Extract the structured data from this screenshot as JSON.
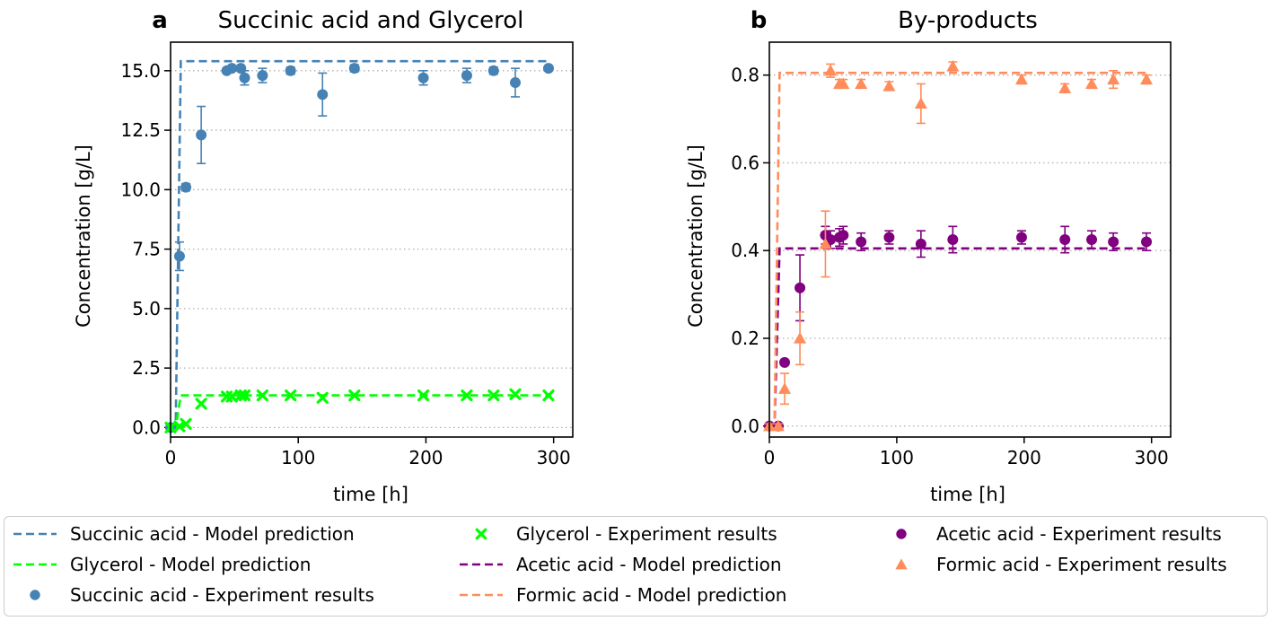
{
  "chart_data": [
    {
      "panel_letter": "a",
      "title": "Succinic acid and Glycerol",
      "type": "line",
      "xlabel": "time [h]",
      "ylabel": "Concentration [g/L]",
      "xlim": [
        0,
        315
      ],
      "ylim": [
        -0.4,
        16.2
      ],
      "xticks": [
        0,
        100,
        200,
        300
      ],
      "xtick_labels": [
        "0",
        "100",
        "200",
        "300"
      ],
      "yticks": [
        0,
        2.5,
        5,
        7.5,
        10,
        12.5,
        15
      ],
      "ytick_labels": [
        "0.0",
        "2.5",
        "5.0",
        "7.5",
        "10.0",
        "12.5",
        "15.0"
      ],
      "grid": "horizontal dotted",
      "model_series": [
        {
          "name": "Succinic acid - Model prediction",
          "x": [
            0,
            4,
            8,
            296
          ],
          "y": [
            0,
            0,
            15.4,
            15.4
          ],
          "color": "#4682b4"
        },
        {
          "name": "Glycerol - Model prediction",
          "x": [
            0,
            4,
            8,
            296
          ],
          "y": [
            0,
            0,
            1.35,
            1.35
          ],
          "color": "#00ff00"
        }
      ],
      "experiment_series": [
        {
          "name": "Succinic acid - Experiment results",
          "marker": "circle",
          "color": "#4682b4",
          "x": [
            0,
            7,
            12,
            24,
            44,
            48,
            55,
            58,
            72,
            94,
            119,
            144,
            198,
            232,
            253,
            270,
            296
          ],
          "y": [
            0,
            7.2,
            10.1,
            12.3,
            15.0,
            15.1,
            15.1,
            14.7,
            14.8,
            15.0,
            14.0,
            15.1,
            14.7,
            14.8,
            15.0,
            14.5,
            15.1
          ],
          "err": [
            0.05,
            0.6,
            0.15,
            1.2,
            0.1,
            0.1,
            0.1,
            0.3,
            0.3,
            0.15,
            0.9,
            0.15,
            0.3,
            0.3,
            0.15,
            0.6,
            0.1
          ]
        },
        {
          "name": "Glycerol - Experiment results",
          "marker": "x",
          "color": "#00ff00",
          "x": [
            0,
            7,
            12,
            24,
            44,
            48,
            55,
            58,
            72,
            94,
            119,
            144,
            198,
            232,
            253,
            270,
            296
          ],
          "y": [
            0,
            0.05,
            0.15,
            1.0,
            1.3,
            1.3,
            1.35,
            1.35,
            1.35,
            1.35,
            1.25,
            1.35,
            1.35,
            1.35,
            1.35,
            1.4,
            1.35
          ],
          "err": []
        }
      ]
    },
    {
      "panel_letter": "b",
      "title": "By-products",
      "type": "line",
      "xlabel": "time [h]",
      "ylabel": "Concentration [g/L]",
      "xlim": [
        0,
        315
      ],
      "ylim": [
        -0.025,
        0.875
      ],
      "xticks": [
        0,
        100,
        200,
        300
      ],
      "xtick_labels": [
        "0",
        "100",
        "200",
        "300"
      ],
      "yticks": [
        0,
        0.2,
        0.4,
        0.6,
        0.8
      ],
      "ytick_labels": [
        "0.0",
        "0.2",
        "0.4",
        "0.6",
        "0.8"
      ],
      "grid": "horizontal dotted",
      "model_series": [
        {
          "name": "Acetic acid - Model prediction",
          "x": [
            0,
            4,
            8,
            296
          ],
          "y": [
            0,
            0,
            0.405,
            0.405
          ],
          "color": "#800080"
        },
        {
          "name": "Formic acid - Model prediction",
          "x": [
            0,
            4,
            8,
            296
          ],
          "y": [
            0,
            0,
            0.805,
            0.805
          ],
          "color": "#ff8c5a"
        }
      ],
      "experiment_series": [
        {
          "name": "Acetic acid - Experiment results",
          "marker": "circle",
          "color": "#800080",
          "x": [
            0,
            7,
            12,
            24,
            44,
            48,
            55,
            58,
            72,
            94,
            119,
            144,
            198,
            232,
            253,
            270,
            296
          ],
          "y": [
            0,
            0.0,
            0.145,
            0.315,
            0.435,
            0.425,
            0.43,
            0.435,
            0.42,
            0.43,
            0.415,
            0.425,
            0.43,
            0.425,
            0.425,
            0.42,
            0.42
          ],
          "err": [
            0.005,
            0.005,
            0.005,
            0.075,
            0.02,
            0.02,
            0.02,
            0.02,
            0.02,
            0.015,
            0.03,
            0.03,
            0.015,
            0.03,
            0.02,
            0.02,
            0.02
          ]
        },
        {
          "name": "Formic acid - Experiment results",
          "marker": "triangle",
          "color": "#ff8c5a",
          "x": [
            0,
            7,
            12,
            24,
            44,
            48,
            55,
            58,
            72,
            94,
            119,
            144,
            198,
            232,
            253,
            270,
            296
          ],
          "y": [
            0,
            0.0,
            0.085,
            0.2,
            0.415,
            0.81,
            0.78,
            0.78,
            0.78,
            0.775,
            0.735,
            0.82,
            0.79,
            0.77,
            0.78,
            0.79,
            0.79
          ],
          "err": [
            0.005,
            0.005,
            0.035,
            0.06,
            0.075,
            0.015,
            0.01,
            0.01,
            0.01,
            0.01,
            0.045,
            0.01,
            0.01,
            0.01,
            0.01,
            0.02,
            0.01
          ]
        }
      ]
    }
  ],
  "legend": {
    "placement": "bottom",
    "entries": [
      {
        "label": "Succinic acid - Model prediction",
        "kind": "dash",
        "color": "#4682b4"
      },
      {
        "label": "Glycerol - Model prediction",
        "kind": "dash",
        "color": "#00ff00"
      },
      {
        "label": "Succinic acid - Experiment results",
        "kind": "circle",
        "color": "#4682b4"
      },
      {
        "label": "Glycerol - Experiment results",
        "kind": "x",
        "color": "#00ff00"
      },
      {
        "label": "Acetic acid - Model prediction",
        "kind": "dash",
        "color": "#800080"
      },
      {
        "label": "Formic acid - Model prediction",
        "kind": "dash",
        "color": "#ff8c5a"
      },
      {
        "label": "Acetic acid - Experiment results",
        "kind": "circle",
        "color": "#800080"
      },
      {
        "label": "Formic acid - Experiment results",
        "kind": "triangle",
        "color": "#ff8c5a"
      }
    ]
  }
}
